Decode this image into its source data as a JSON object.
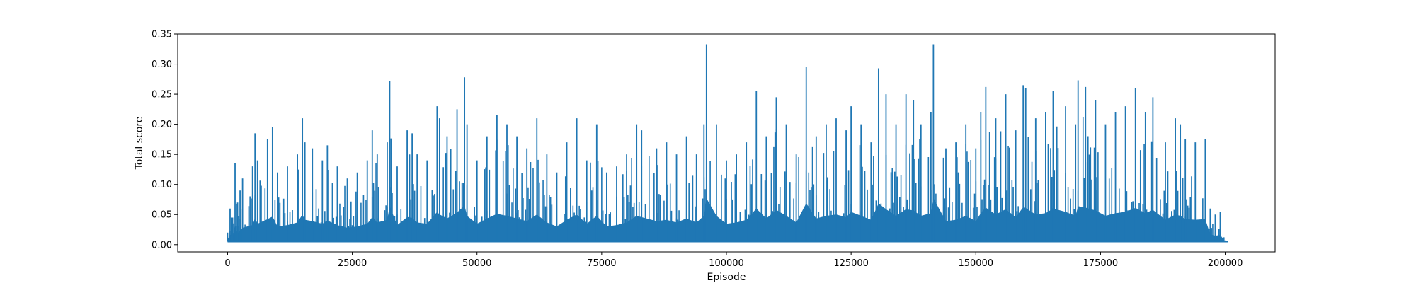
{
  "chart_data": {
    "type": "line",
    "xlabel": "Episode",
    "ylabel": "Total score",
    "xlim": [
      -10000,
      210000
    ],
    "ylim": [
      -0.012,
      0.35
    ],
    "grid": false,
    "line_color": "#1f77b4",
    "x_ticks": [
      0,
      25000,
      50000,
      75000,
      100000,
      125000,
      150000,
      175000,
      200000
    ],
    "x_tick_labels": [
      "0",
      "25000",
      "50000",
      "75000",
      "100000",
      "125000",
      "150000",
      "175000",
      "200000"
    ],
    "y_ticks": [
      0.0,
      0.05,
      0.1,
      0.15,
      0.2,
      0.25,
      0.3,
      0.35
    ],
    "y_tick_labels": [
      "0.00",
      "0.05",
      "0.10",
      "0.15",
      "0.20",
      "0.25",
      "0.30",
      "0.35"
    ],
    "baseline": 0.005,
    "series": [
      {
        "x": [
          0,
          500,
          1000,
          1500,
          2000,
          2500,
          3000,
          5000,
          5500,
          6000,
          8000,
          9000,
          10000,
          12000,
          14000,
          15000,
          15500,
          17000,
          19000,
          20000,
          22000,
          24000,
          26000,
          28000,
          29000,
          30000,
          32000,
          32500,
          34000,
          36000,
          37000,
          38000,
          40000,
          42000,
          42500,
          44000,
          46000,
          47500,
          48000,
          50000,
          52000,
          54000,
          56000,
          58000,
          60000,
          62000,
          64000,
          66000,
          68000,
          70000,
          72000,
          74000,
          76000,
          78000,
          80000,
          82000,
          83000,
          86000,
          88000,
          90000,
          92000,
          94000,
          95500,
          96000,
          98000,
          100000,
          102000,
          104000,
          106000,
          108000,
          110000,
          112000,
          114000,
          116000,
          118000,
          120000,
          122000,
          124000,
          125000,
          127000,
          129000,
          130500,
          132000,
          134000,
          136000,
          137500,
          139000,
          141000,
          141500,
          144000,
          146000,
          148000,
          150000,
          151000,
          152000,
          154000,
          156000,
          158000,
          159500,
          160000,
          162000,
          164000,
          165500,
          168000,
          170000,
          170500,
          172000,
          174000,
          176000,
          178000,
          180000,
          182000,
          184000,
          185500,
          188000,
          190000,
          191000,
          192000,
          194000,
          196000,
          197000,
          198000,
          199000,
          200000
        ],
        "y": [
          0.02,
          0.06,
          0.045,
          0.135,
          0.07,
          0.09,
          0.11,
          0.13,
          0.185,
          0.14,
          0.175,
          0.195,
          0.12,
          0.13,
          0.15,
          0.21,
          0.17,
          0.16,
          0.14,
          0.165,
          0.13,
          0.11,
          0.12,
          0.14,
          0.19,
          0.15,
          0.17,
          0.272,
          0.13,
          0.19,
          0.185,
          0.15,
          0.14,
          0.23,
          0.21,
          0.18,
          0.225,
          0.278,
          0.2,
          0.14,
          0.18,
          0.215,
          0.2,
          0.18,
          0.16,
          0.21,
          0.15,
          0.12,
          0.17,
          0.21,
          0.14,
          0.2,
          0.12,
          0.13,
          0.15,
          0.2,
          0.19,
          0.16,
          0.17,
          0.15,
          0.18,
          0.15,
          0.2,
          0.333,
          0.2,
          0.14,
          0.15,
          0.17,
          0.255,
          0.18,
          0.245,
          0.2,
          0.15,
          0.295,
          0.18,
          0.2,
          0.21,
          0.19,
          0.23,
          0.2,
          0.17,
          0.293,
          0.25,
          0.2,
          0.25,
          0.24,
          0.2,
          0.22,
          0.333,
          0.16,
          0.17,
          0.2,
          0.16,
          0.22,
          0.262,
          0.21,
          0.25,
          0.19,
          0.265,
          0.26,
          0.21,
          0.22,
          0.255,
          0.23,
          0.2,
          0.273,
          0.262,
          0.24,
          0.2,
          0.22,
          0.23,
          0.26,
          0.22,
          0.245,
          0.17,
          0.21,
          0.2,
          0.175,
          0.17,
          0.175,
          0.06,
          0.05,
          0.055,
          0.007
        ]
      }
    ]
  }
}
